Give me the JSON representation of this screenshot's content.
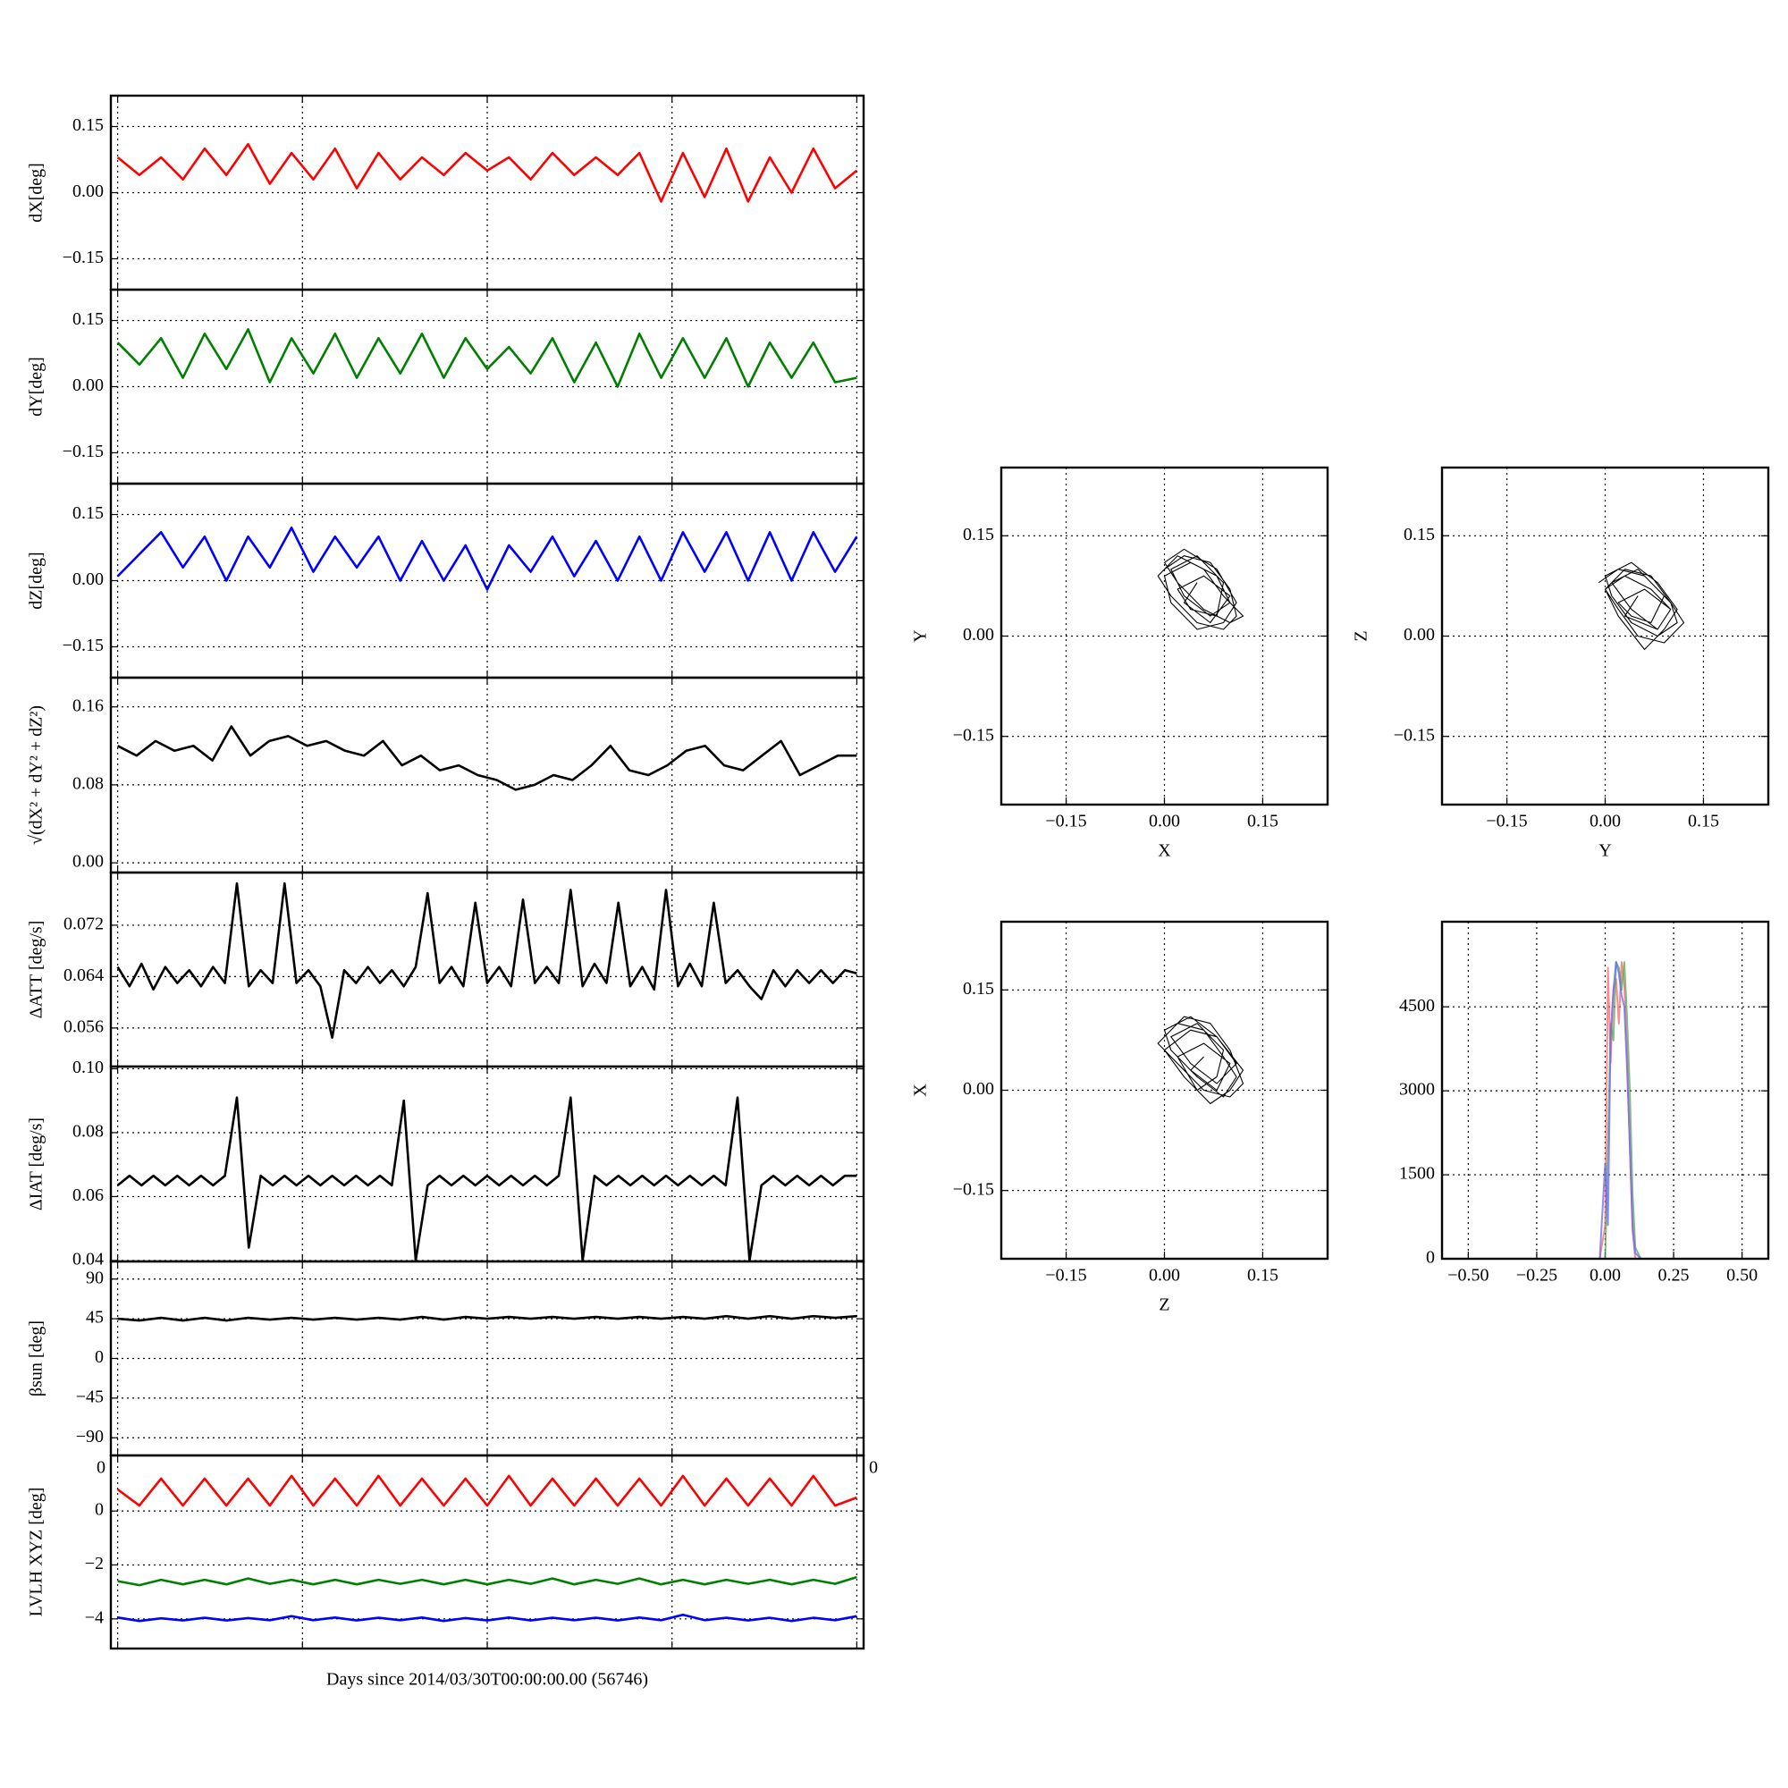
{
  "chart_data": [
    {
      "type": "line",
      "ylabel": "dX[deg]",
      "ylim": [
        -0.22,
        0.22
      ],
      "yticks": [
        0.15,
        {
          "value": 0,
          "label": "0.00"
        },
        {
          "value": -0.15,
          "label": "−0.15"
        }
      ],
      "grid": true,
      "color": "#ff0000",
      "values": [
        0.08,
        0.04,
        0.08,
        0.03,
        0.1,
        0.04,
        0.11,
        0.02,
        0.09,
        0.03,
        0.1,
        0.01,
        0.09,
        0.03,
        0.08,
        0.04,
        0.09,
        0.05,
        0.08,
        0.03,
        0.09,
        0.04,
        0.08,
        0.04,
        0.09,
        -0.02,
        0.09,
        -0.01,
        0.1,
        -0.02,
        0.08,
        0.0,
        0.1,
        0.01,
        0.05
      ]
    },
    {
      "type": "line",
      "ylabel": "dY[deg]",
      "ylim": [
        -0.22,
        0.22
      ],
      "yticks": [
        0.15,
        {
          "value": 0,
          "label": "0.00"
        },
        {
          "value": -0.15,
          "label": "−0.15"
        }
      ],
      "grid": true,
      "color": "#008000",
      "values": [
        0.1,
        0.05,
        0.11,
        0.02,
        0.12,
        0.04,
        0.13,
        0.01,
        0.11,
        0.03,
        0.12,
        0.02,
        0.11,
        0.03,
        0.12,
        0.02,
        0.11,
        0.04,
        0.09,
        0.03,
        0.11,
        0.01,
        0.1,
        0.0,
        0.12,
        0.02,
        0.11,
        0.02,
        0.11,
        0.0,
        0.1,
        0.02,
        0.1,
        0.01,
        0.02
      ]
    },
    {
      "type": "line",
      "ylabel": "dZ[deg]",
      "ylim": [
        -0.22,
        0.22
      ],
      "yticks": [
        0.15,
        {
          "value": 0,
          "label": "0.00"
        },
        {
          "value": -0.15,
          "label": "−0.15"
        }
      ],
      "grid": true,
      "color": "#0000ff",
      "values": [
        0.01,
        0.06,
        0.11,
        0.03,
        0.1,
        0.0,
        0.1,
        0.03,
        0.12,
        0.02,
        0.1,
        0.03,
        0.1,
        0.0,
        0.09,
        0.0,
        0.08,
        -0.02,
        0.08,
        0.02,
        0.1,
        0.01,
        0.09,
        0.0,
        0.1,
        0.0,
        0.11,
        0.02,
        0.11,
        0.0,
        0.11,
        0.0,
        0.11,
        0.02,
        0.1
      ]
    },
    {
      "type": "line",
      "ylabel": "√(dX² + dY² + dZ²)",
      "ylim": [
        -0.01,
        0.19
      ],
      "yticks": [
        0.16,
        0.08,
        {
          "value": 0,
          "label": "0.00"
        }
      ],
      "grid": true,
      "color": "#000000",
      "values": [
        0.12,
        0.11,
        0.125,
        0.115,
        0.12,
        0.105,
        0.14,
        0.11,
        0.125,
        0.13,
        0.12,
        0.125,
        0.115,
        0.11,
        0.125,
        0.1,
        0.11,
        0.095,
        0.1,
        0.09,
        0.085,
        0.075,
        0.08,
        0.09,
        0.085,
        0.1,
        0.12,
        0.095,
        0.09,
        0.1,
        0.115,
        0.12,
        0.1,
        0.095,
        0.11,
        0.125,
        0.09,
        0.1,
        0.11,
        0.11
      ]
    },
    {
      "type": "line",
      "ylabel": "ΔATT [deg/s]",
      "ylim": [
        0.05,
        0.0802
      ],
      "yticks": [
        0.072,
        0.064,
        0.056
      ],
      "grid": true,
      "color": "#000000",
      "values": [
        0.0655,
        0.0625,
        0.066,
        0.062,
        0.0655,
        0.063,
        0.065,
        0.0625,
        0.0655,
        0.063,
        0.0785,
        0.0625,
        0.065,
        0.063,
        0.0785,
        0.063,
        0.065,
        0.0625,
        0.0545,
        0.065,
        0.063,
        0.0655,
        0.063,
        0.065,
        0.0625,
        0.0655,
        0.077,
        0.063,
        0.0655,
        0.0625,
        0.0755,
        0.063,
        0.0655,
        0.0625,
        0.076,
        0.063,
        0.0655,
        0.063,
        0.0775,
        0.0625,
        0.066,
        0.063,
        0.0755,
        0.0625,
        0.0655,
        0.062,
        0.0775,
        0.0625,
        0.066,
        0.0625,
        0.0755,
        0.063,
        0.065,
        0.0625,
        0.0605,
        0.065,
        0.0625,
        0.065,
        0.063,
        0.065,
        0.063,
        0.065,
        0.0645
      ]
    },
    {
      "type": "line",
      "ylabel": "ΔIAT [deg/s]",
      "ylim": [
        0.0397,
        0.1007
      ],
      "yticks": [
        {
          "value": 0.1,
          "label": "0.10"
        },
        0.08,
        0.06,
        0.04
      ],
      "grid": true,
      "color": "#000000",
      "values": [
        0.0635,
        0.0665,
        0.0635,
        0.0665,
        0.0635,
        0.0665,
        0.0635,
        0.0665,
        0.0635,
        0.0665,
        0.091,
        0.044,
        0.0665,
        0.0635,
        0.0665,
        0.0635,
        0.0665,
        0.0635,
        0.0665,
        0.0635,
        0.0665,
        0.0635,
        0.0665,
        0.0635,
        0.09,
        0.04,
        0.0635,
        0.0665,
        0.0635,
        0.0665,
        0.0635,
        0.0665,
        0.0635,
        0.0665,
        0.0635,
        0.0665,
        0.0635,
        0.0665,
        0.091,
        0.04,
        0.0665,
        0.0635,
        0.0665,
        0.0635,
        0.0665,
        0.0635,
        0.0665,
        0.0635,
        0.0665,
        0.0635,
        0.0665,
        0.0635,
        0.091,
        0.04,
        0.0635,
        0.0665,
        0.0635,
        0.0665,
        0.0635,
        0.0665,
        0.0635,
        0.0665,
        0.0665
      ]
    },
    {
      "type": "line",
      "ylabel": "βsun [deg]",
      "ylim": [
        -110,
        110
      ],
      "yticks": [
        90,
        45,
        0,
        {
          "value": -45,
          "label": "−45"
        },
        {
          "value": -90,
          "label": "−90"
        }
      ],
      "grid": true,
      "color": "#000000",
      "values": [
        45,
        43,
        46,
        43,
        46,
        43,
        46,
        44,
        46,
        44,
        46,
        44,
        46,
        44,
        47,
        44,
        47,
        45,
        47,
        45,
        47,
        45,
        47,
        45,
        47,
        45,
        47,
        45,
        48,
        45,
        48,
        45,
        48,
        46,
        48
      ]
    },
    {
      "type": "line",
      "ylabel": "LVLH XYZ [deg]",
      "xlabel": "Days since 2014/03/30T00:00:00.00 (56746)",
      "annotations": [
        "0",
        "0"
      ],
      "ylim": [
        -5.1,
        2.06
      ],
      "yticks": [
        0,
        {
          "value": -2,
          "label": "−2"
        },
        {
          "value": -4,
          "label": "−4"
        }
      ],
      "grid": true,
      "series": [
        {
          "color": "#ff0000",
          "values": [
            0.8,
            0.2,
            1.2,
            0.2,
            1.2,
            0.2,
            1.2,
            0.2,
            1.3,
            0.2,
            1.2,
            0.2,
            1.3,
            0.2,
            1.2,
            0.2,
            1.2,
            0.2,
            1.3,
            0.2,
            1.2,
            0.2,
            1.2,
            0.2,
            1.2,
            0.2,
            1.3,
            0.2,
            1.2,
            0.2,
            1.2,
            0.2,
            1.3,
            0.2,
            0.5
          ]
        },
        {
          "color": "#008000",
          "values": [
            -2.6,
            -2.75,
            -2.55,
            -2.72,
            -2.55,
            -2.72,
            -2.5,
            -2.7,
            -2.55,
            -2.72,
            -2.55,
            -2.72,
            -2.55,
            -2.7,
            -2.55,
            -2.72,
            -2.55,
            -2.72,
            -2.55,
            -2.7,
            -2.5,
            -2.72,
            -2.55,
            -2.7,
            -2.5,
            -2.72,
            -2.55,
            -2.72,
            -2.55,
            -2.7,
            -2.55,
            -2.72,
            -2.55,
            -2.7,
            -2.45
          ]
        },
        {
          "color": "#0000ff",
          "values": [
            -3.95,
            -4.08,
            -3.98,
            -4.06,
            -3.96,
            -4.06,
            -3.97,
            -4.05,
            -3.9,
            -4.05,
            -3.95,
            -4.06,
            -3.96,
            -4.05,
            -3.95,
            -4.08,
            -3.97,
            -4.06,
            -3.95,
            -4.06,
            -3.96,
            -4.05,
            -3.96,
            -4.06,
            -3.95,
            -4.05,
            -3.85,
            -4.05,
            -3.96,
            -4.06,
            -3.96,
            -4.08,
            -3.96,
            -4.05,
            -3.9
          ]
        }
      ]
    },
    {
      "type": "line",
      "xlabel": "X",
      "ylabel": "Y",
      "xlim": [
        -0.249,
        0.249
      ],
      "ylim": [
        -0.252,
        0.252
      ],
      "xticks": [
        {
          "value": -0.15,
          "label": "−0.15"
        },
        {
          "value": 0,
          "label": "0.00"
        },
        0.15
      ],
      "yticks": [
        0.15,
        {
          "value": 0,
          "label": "0.00"
        },
        {
          "value": -0.15,
          "label": "−0.15"
        }
      ],
      "grid": true,
      "color": "#000000",
      "x": [
        0.0,
        0.03,
        0.07,
        0.1,
        0.11,
        0.09,
        0.05,
        0.01,
        -0.01,
        0.02,
        0.06,
        0.09,
        0.12,
        0.1,
        0.06,
        0.02,
        0.0,
        0.03,
        0.08,
        0.11,
        0.09,
        0.05,
        0.01,
        0.0,
        0.04,
        0.08,
        0.1,
        0.07,
        0.03,
        0.01,
        0.05,
        0.09,
        0.08,
        0.04,
        0.02,
        0.06,
        0.1,
        0.07,
        0.03,
        0.05
      ],
      "values": [
        0.1,
        0.12,
        0.11,
        0.07,
        0.03,
        0.01,
        0.02,
        0.06,
        0.09,
        0.12,
        0.1,
        0.06,
        0.03,
        0.02,
        0.04,
        0.08,
        0.11,
        0.13,
        0.1,
        0.05,
        0.02,
        0.01,
        0.05,
        0.09,
        0.11,
        0.09,
        0.05,
        0.03,
        0.06,
        0.1,
        0.12,
        0.08,
        0.03,
        0.04,
        0.07,
        0.09,
        0.06,
        0.02,
        0.05,
        0.08
      ]
    },
    {
      "type": "line",
      "xlabel": "Y",
      "ylabel": "Z",
      "xlim": [
        -0.249,
        0.249
      ],
      "ylim": [
        -0.252,
        0.252
      ],
      "xticks": [
        {
          "value": -0.15,
          "label": "−0.15"
        },
        {
          "value": 0,
          "label": "0.00"
        },
        0.15
      ],
      "yticks": [
        0.15,
        {
          "value": 0,
          "label": "0.00"
        },
        {
          "value": -0.15,
          "label": "−0.15"
        }
      ],
      "grid": true,
      "color": "#000000",
      "x": [
        -0.01,
        0.02,
        0.06,
        0.1,
        0.12,
        0.09,
        0.05,
        0.02,
        0.0,
        0.03,
        0.07,
        0.1,
        0.11,
        0.08,
        0.04,
        0.01,
        0.0,
        0.04,
        0.08,
        0.11,
        0.09,
        0.06,
        0.02,
        0.0,
        0.03,
        0.07,
        0.1,
        0.08,
        0.04,
        0.01,
        0.05,
        0.09,
        0.07,
        0.04,
        0.02,
        0.06,
        0.1,
        0.08,
        0.03,
        0.05
      ],
      "values": [
        0.08,
        0.1,
        0.09,
        0.05,
        0.02,
        -0.01,
        0.0,
        0.04,
        0.07,
        0.1,
        0.09,
        0.05,
        0.02,
        0.0,
        0.02,
        0.06,
        0.09,
        0.11,
        0.08,
        0.04,
        0.01,
        -0.02,
        0.03,
        0.07,
        0.09,
        0.07,
        0.04,
        0.01,
        0.04,
        0.08,
        0.1,
        0.06,
        0.02,
        0.03,
        0.05,
        0.07,
        0.04,
        0.01,
        0.03,
        0.06
      ]
    },
    {
      "type": "line",
      "xlabel": "Z",
      "ylabel": "X",
      "xlim": [
        -0.249,
        0.249
      ],
      "ylim": [
        -0.252,
        0.252
      ],
      "xticks": [
        {
          "value": -0.15,
          "label": "−0.15"
        },
        {
          "value": 0,
          "label": "0.00"
        },
        0.15
      ],
      "yticks": [
        0.15,
        {
          "value": 0,
          "label": "0.00"
        },
        {
          "value": -0.15,
          "label": "−0.15"
        }
      ],
      "grid": true,
      "color": "#000000",
      "x": [
        0.0,
        0.03,
        0.07,
        0.1,
        0.12,
        0.1,
        0.06,
        0.02,
        -0.01,
        0.02,
        0.06,
        0.09,
        0.11,
        0.09,
        0.05,
        0.01,
        0.0,
        0.04,
        0.08,
        0.12,
        0.1,
        0.07,
        0.03,
        0.0,
        0.04,
        0.08,
        0.11,
        0.08,
        0.04,
        0.01,
        0.05,
        0.09,
        0.08,
        0.05,
        0.02,
        0.06,
        0.1,
        0.08,
        0.04,
        0.06
      ],
      "values": [
        0.08,
        0.11,
        0.1,
        0.06,
        0.01,
        -0.01,
        0.0,
        0.04,
        0.07,
        0.1,
        0.09,
        0.05,
        0.02,
        -0.01,
        0.02,
        0.06,
        0.09,
        0.11,
        0.08,
        0.03,
        0.0,
        -0.02,
        0.02,
        0.06,
        0.09,
        0.08,
        0.04,
        0.01,
        0.04,
        0.08,
        0.1,
        0.06,
        0.02,
        0.0,
        0.05,
        0.07,
        0.04,
        0.0,
        0.03,
        0.05
      ]
    },
    {
      "type": "line",
      "xlim": [
        -0.596,
        0.596
      ],
      "ylim": [
        0,
        6020
      ],
      "xticks": [
        {
          "value": -0.5,
          "label": "−0.50"
        },
        {
          "value": -0.25,
          "label": "−0.25"
        },
        {
          "value": 0,
          "label": "0.00"
        },
        0.25,
        {
          "value": 0.5,
          "label": "0.50"
        }
      ],
      "yticks": [
        4500,
        3000,
        1500,
        0
      ],
      "grid": true,
      "x": [
        -0.6,
        -0.05,
        -0.02,
        0.0,
        0.01,
        0.02,
        0.03,
        0.04,
        0.05,
        0.06,
        0.07,
        0.08,
        0.09,
        0.1,
        0.11,
        0.13,
        0.6
      ],
      "series": [
        {
          "color": "#ff6666",
          "values": [
            0,
            0,
            0,
            600,
            5200,
            3500,
            4800,
            5000,
            4200,
            5300,
            4900,
            3600,
            2000,
            500,
            0,
            0,
            0
          ]
        },
        {
          "color": "#55aa55",
          "values": [
            0,
            0,
            0,
            0,
            2000,
            4200,
            3900,
            5300,
            5200,
            4800,
            5300,
            4300,
            3000,
            1200,
            200,
            0,
            0
          ]
        },
        {
          "color": "#6666ff",
          "values": [
            0,
            0,
            0,
            1700,
            600,
            4000,
            4800,
            5300,
            5100,
            4700,
            4500,
            3400,
            2000,
            600,
            100,
            0,
            0
          ]
        }
      ]
    }
  ]
}
